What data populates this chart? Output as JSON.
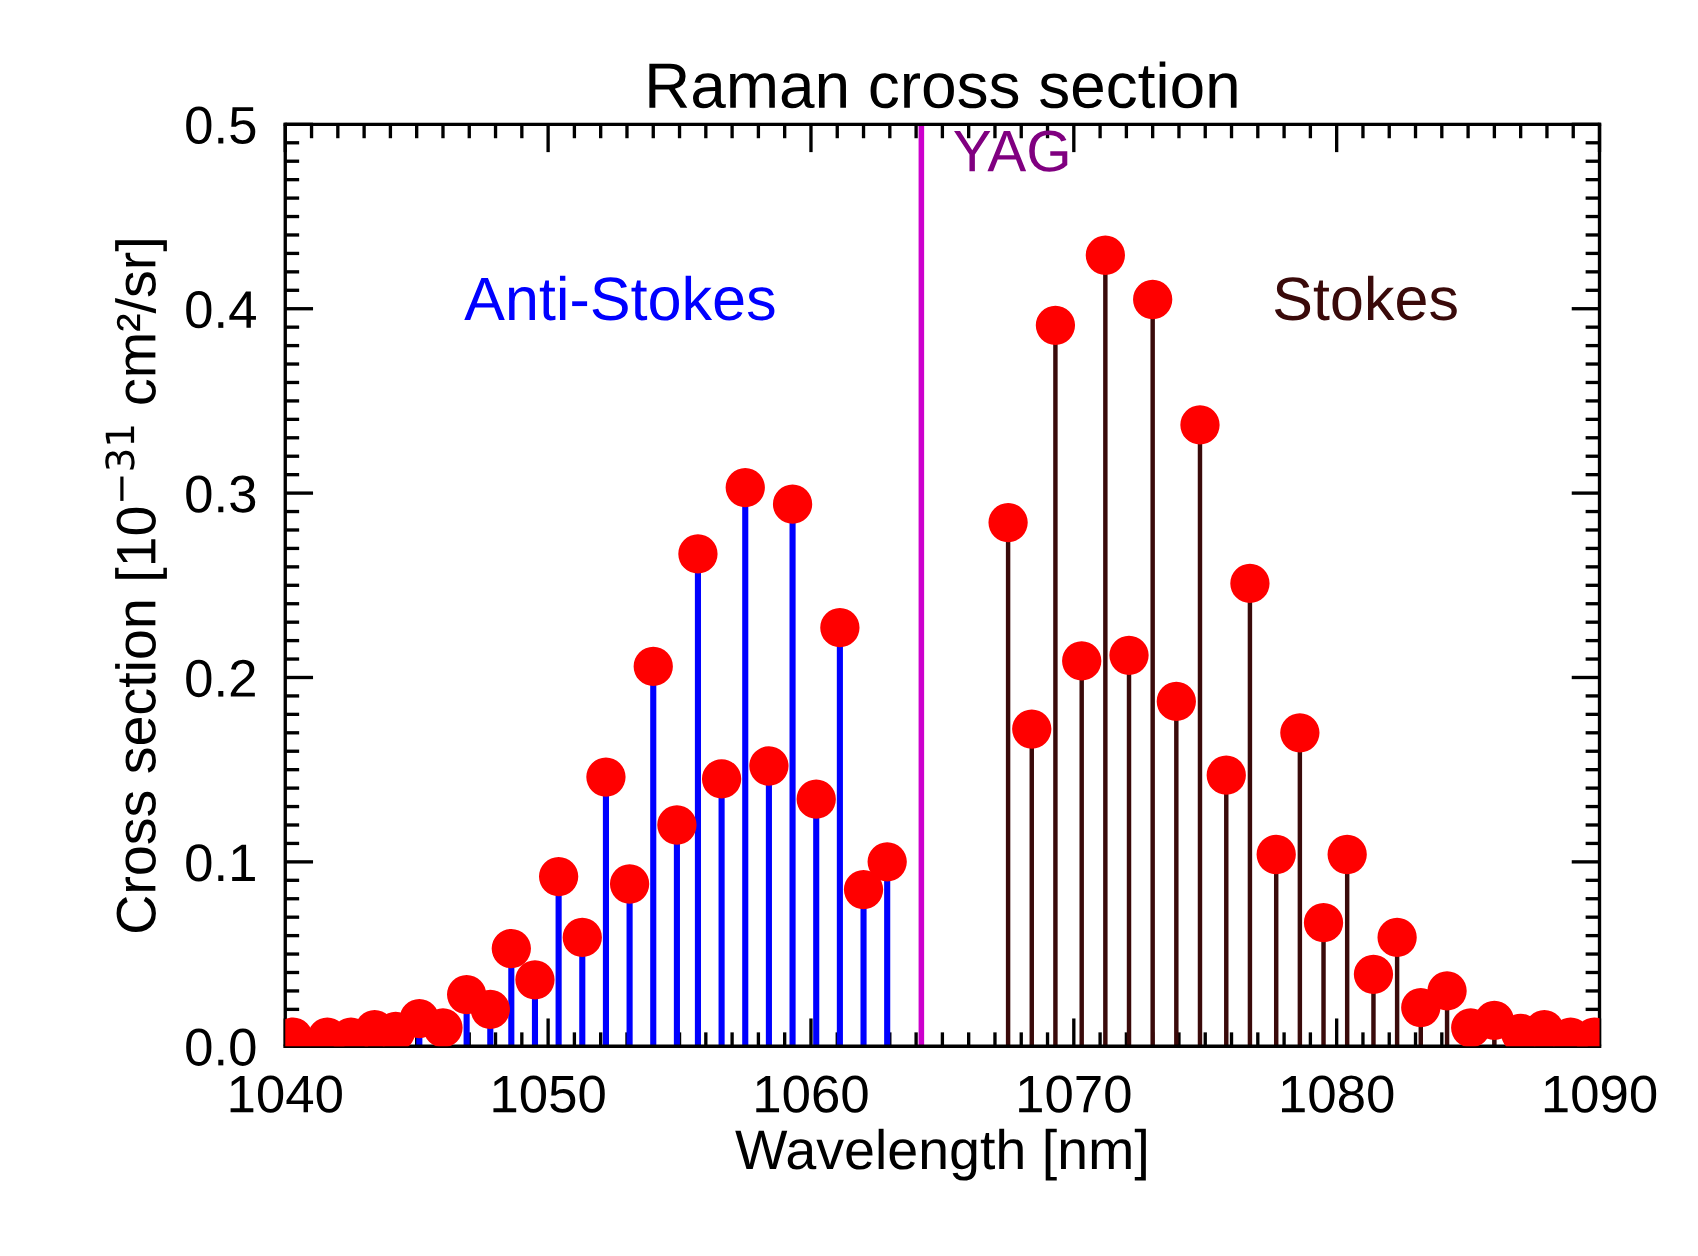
{
  "chart_data": {
    "type": "lollipop",
    "title": "Raman cross section",
    "xlabel": "Wavelength [nm]",
    "ylabel": "Cross section [10$^{−31}$ cm²/sr]",
    "xlim": [
      1040,
      1090
    ],
    "xticks": [
      1040,
      1050,
      1060,
      1070,
      1080,
      1090
    ],
    "ylim": [
      0.0,
      0.5
    ],
    "yticks": [
      {
        "value": 0,
        "label": "0.0"
      },
      0.1,
      0.2,
      0.3,
      0.4,
      0.5
    ],
    "grid": false,
    "legend": false,
    "marker": "circle",
    "ref_lines": [
      {
        "axis": "x",
        "value": 1064.2,
        "label": "YAG",
        "color": "#cc00cc"
      }
    ],
    "series": [
      {
        "name": "Anti-Stokes",
        "color": "#0000ff",
        "colors": [
          "#ff0000",
          "#ff0000",
          "#ff0000",
          "#ff0000",
          "#ff0000",
          "#ff0000",
          "#ff0000",
          "#ff0000",
          "#ff0000",
          "#ff0000",
          "#ff0000",
          "#ff0000",
          "#ff0000",
          "#ff0000",
          "#ff0000",
          "#ff0000",
          "#ff0000",
          "#ff0000",
          "#ff0000",
          "#ff0000",
          "#ff0000",
          "#ff0000",
          "#ff0000",
          "#ff0000",
          "#ff0000",
          "#ff0000"
        ],
        "x": [
          1040.3,
          1041.6,
          1042.5,
          1043.4,
          1044.2,
          1045.1,
          1046.0,
          1046.9,
          1047.8,
          1048.6,
          1049.5,
          1050.4,
          1051.3,
          1052.2,
          1053.1,
          1054.0,
          1054.9,
          1055.7,
          1056.6,
          1057.5,
          1058.4,
          1059.3,
          1060.2,
          1061.1,
          1062.0,
          1062.9
        ],
        "values": [
          0.005,
          0.005,
          0.005,
          0.009,
          0.008,
          0.015,
          0.01,
          0.028,
          0.02,
          0.053,
          0.036,
          0.092,
          0.059,
          0.146,
          0.088,
          0.206,
          0.12,
          0.267,
          0.145,
          0.303,
          0.152,
          0.294,
          0.134,
          0.227,
          0.085,
          0.1
        ]
      },
      {
        "name": "Stokes",
        "color": "#3a0a0a",
        "colors": [
          "#ff0000",
          "#ff0000",
          "#ff0000",
          "#ff0000",
          "#ff0000",
          "#ff0000",
          "#ff0000",
          "#ff0000",
          "#ff0000",
          "#ff0000",
          "#ff0000",
          "#ff0000",
          "#ff0000",
          "#ff0000",
          "#ff0000",
          "#ff0000",
          "#ff0000",
          "#ff0000",
          "#ff0000",
          "#ff0000",
          "#ff0000",
          "#ff0000",
          "#ff0000",
          "#ff0000",
          "#ff0000"
        ],
        "x": [
          1067.5,
          1068.4,
          1069.3,
          1070.3,
          1071.2,
          1072.1,
          1073.0,
          1073.9,
          1074.8,
          1075.8,
          1076.7,
          1077.7,
          1078.6,
          1079.5,
          1080.4,
          1081.4,
          1082.3,
          1083.2,
          1084.2,
          1085.1,
          1086.0,
          1087.0,
          1087.9,
          1088.9,
          1089.8
        ],
        "values": [
          0.284,
          0.172,
          0.391,
          0.209,
          0.429,
          0.212,
          0.405,
          0.187,
          0.337,
          0.147,
          0.251,
          0.104,
          0.17,
          0.067,
          0.104,
          0.039,
          0.059,
          0.021,
          0.03,
          0.01,
          0.014,
          0.007,
          0.009,
          0.005,
          0.005
        ]
      }
    ]
  }
}
